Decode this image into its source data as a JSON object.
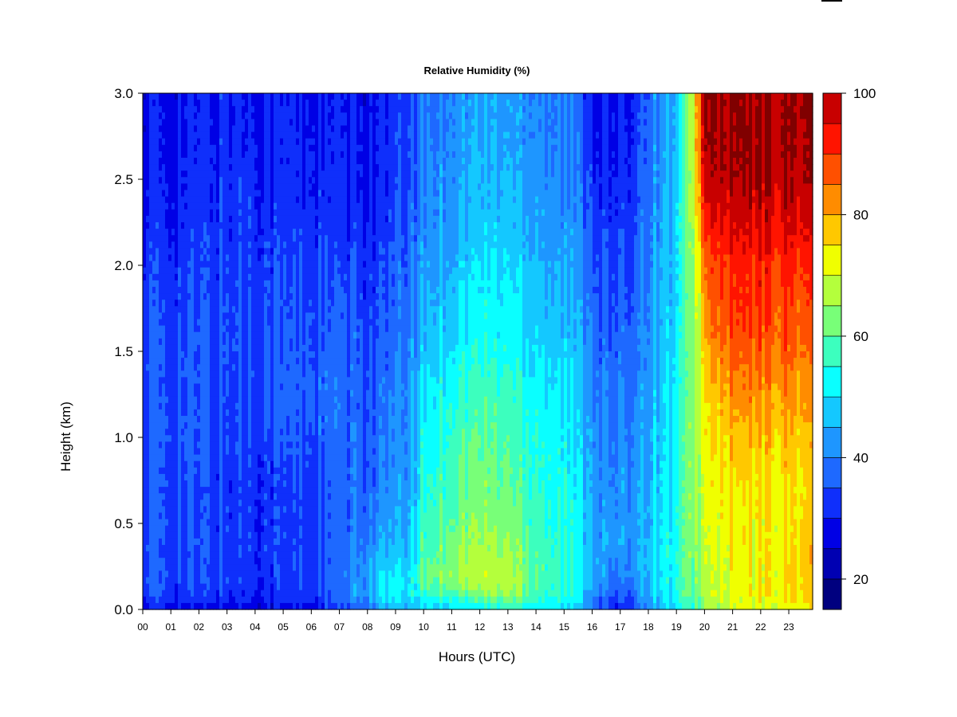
{
  "chart_data": {
    "type": "heatmap",
    "title": "Relative Humidity (%)",
    "xlabel": "Hours (UTC)",
    "ylabel": "Height (km)",
    "xlim": [
      0,
      23.85
    ],
    "ylim": [
      0,
      3.0
    ],
    "x_ticks": [
      "00",
      "01",
      "02",
      "03",
      "04",
      "05",
      "06",
      "07",
      "08",
      "09",
      "10",
      "11",
      "12",
      "13",
      "14",
      "15",
      "16",
      "17",
      "18",
      "19",
      "20",
      "21",
      "22",
      "23"
    ],
    "y_ticks": [
      "0.0",
      "0.5",
      "1.0",
      "1.5",
      "2.0",
      "2.5",
      "3.0"
    ],
    "heights_km": [
      0.0,
      0.05,
      0.1,
      0.2,
      0.3,
      0.5,
      0.7,
      1.0,
      1.3,
      1.6,
      2.0,
      2.3,
      2.6,
      3.0
    ],
    "hours_utc": [
      0,
      1,
      2,
      3,
      4,
      5,
      6,
      7,
      8,
      8.5,
      9,
      9.5,
      10,
      11,
      12,
      13,
      14,
      15,
      15.5,
      16,
      16.5,
      17,
      17.5,
      18,
      19,
      19.5,
      20,
      20.5,
      21,
      22,
      23,
      23.85
    ],
    "rh_percent": [
      [
        29,
        28,
        27,
        27,
        27,
        27,
        28,
        32,
        38,
        43,
        44,
        45,
        47,
        50,
        52,
        55,
        53,
        50,
        46,
        40,
        32,
        28,
        33,
        44,
        48,
        55,
        62,
        66,
        68,
        70,
        72,
        74
      ],
      [
        33,
        32,
        31,
        31,
        31,
        31,
        32,
        36,
        42,
        47,
        48,
        49,
        52,
        55,
        57,
        60,
        57,
        53,
        49,
        42,
        35,
        31,
        37,
        47,
        52,
        58,
        64,
        68,
        70,
        72,
        74,
        76
      ],
      [
        35,
        34,
        33,
        33,
        32,
        32,
        33,
        37,
        44,
        50,
        50,
        51,
        56,
        61,
        64,
        66,
        61,
        55,
        51,
        44,
        37,
        34,
        41,
        48,
        54,
        60,
        66,
        70,
        71,
        73,
        74,
        76
      ],
      [
        36,
        35,
        34,
        34,
        33,
        33,
        34,
        37,
        44,
        49,
        50,
        51,
        60,
        66,
        68,
        68,
        61,
        55,
        52,
        47,
        41,
        38,
        44,
        49,
        54,
        61,
        67,
        70,
        71,
        73,
        75,
        78
      ],
      [
        36,
        35,
        34,
        34,
        33,
        33,
        34,
        37,
        42,
        46,
        46,
        48,
        59,
        65,
        67,
        67,
        60,
        55,
        52,
        47,
        42,
        40,
        45,
        49,
        54,
        62,
        68,
        71,
        72,
        73,
        75,
        78
      ],
      [
        35,
        35,
        34,
        34,
        33,
        33,
        34,
        36,
        39,
        42,
        43,
        46,
        56,
        62,
        64,
        63,
        58,
        54,
        51,
        46,
        42,
        41,
        45,
        48,
        54,
        62,
        69,
        72,
        73,
        73,
        74,
        77
      ],
      [
        35,
        35,
        34,
        33,
        33,
        33,
        34,
        36,
        38,
        40,
        41,
        44,
        54,
        60,
        62,
        61,
        57,
        53,
        50,
        45,
        41,
        40,
        44,
        47,
        53,
        62,
        70,
        73,
        74,
        74,
        74,
        76
      ],
      [
        36,
        36,
        35,
        35,
        34,
        35,
        36,
        37,
        37,
        38,
        40,
        43,
        52,
        58,
        60,
        59,
        56,
        52,
        49,
        44,
        40,
        39,
        43,
        46,
        52,
        62,
        72,
        76,
        77,
        78,
        78,
        78
      ],
      [
        36,
        35,
        35,
        35,
        35,
        36,
        37,
        37,
        36,
        37,
        39,
        42,
        49,
        55,
        57,
        56,
        53,
        50,
        47,
        42,
        38,
        37,
        41,
        45,
        51,
        61,
        74,
        80,
        82,
        83,
        83,
        82
      ],
      [
        35,
        35,
        35,
        35,
        35,
        35,
        36,
        36,
        35,
        35,
        36,
        40,
        46,
        50,
        53,
        53,
        50,
        47,
        45,
        40,
        36,
        35,
        39,
        43,
        50,
        61,
        78,
        86,
        88,
        88,
        87,
        86
      ],
      [
        33,
        33,
        33,
        34,
        34,
        34,
        34,
        33,
        33,
        33,
        35,
        38,
        43,
        47,
        50,
        50,
        47,
        44,
        42,
        38,
        34,
        33,
        37,
        42,
        49,
        62,
        84,
        90,
        91,
        92,
        91,
        90
      ],
      [
        31,
        31,
        32,
        33,
        33,
        32,
        32,
        31,
        31,
        31,
        33,
        36,
        41,
        44,
        47,
        47,
        45,
        42,
        40,
        36,
        32,
        31,
        35,
        41,
        48,
        63,
        92,
        96,
        96,
        97,
        97,
        97
      ],
      [
        30,
        30,
        31,
        32,
        32,
        31,
        31,
        30,
        30,
        30,
        32,
        35,
        40,
        43,
        45,
        45,
        43,
        40,
        38,
        33,
        30,
        29,
        34,
        40,
        47,
        64,
        98,
        100,
        100,
        100,
        100,
        100
      ],
      [
        29,
        29,
        30,
        31,
        31,
        30,
        30,
        29,
        29,
        29,
        31,
        34,
        39,
        42,
        44,
        44,
        42,
        39,
        37,
        31,
        29,
        28,
        33,
        39,
        46,
        66,
        100,
        100,
        100,
        100,
        100,
        100
      ]
    ],
    "colorbar": {
      "ticks": [
        "20",
        "40",
        "60",
        "80",
        "100"
      ],
      "levels": [
        15,
        20,
        25,
        30,
        35,
        40,
        45,
        50,
        55,
        60,
        65,
        70,
        75,
        80,
        85,
        90,
        95,
        100
      ],
      "colors": [
        "#00007f",
        "#0000b2",
        "#0000e5",
        "#0f2ffb",
        "#1e69ff",
        "#1e96ff",
        "#14c8ff",
        "#0affff",
        "#3cffbe",
        "#78ff78",
        "#b4ff3c",
        "#f0ff00",
        "#ffc800",
        "#ff8c00",
        "#ff5000",
        "#ff1400",
        "#c80000",
        "#800000"
      ]
    }
  }
}
